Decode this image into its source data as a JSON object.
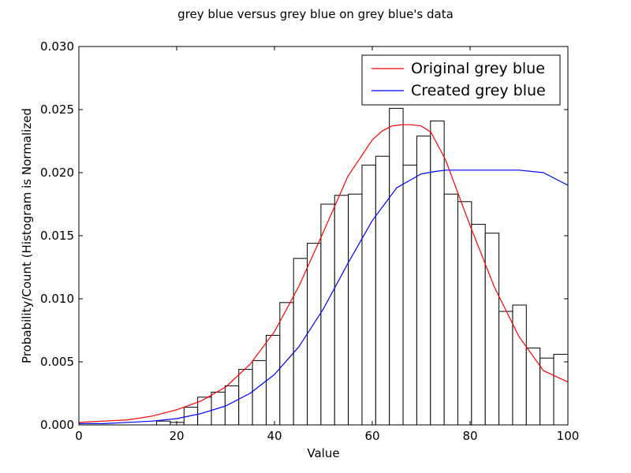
{
  "chart_data": {
    "type": "bar",
    "title": "grey blue versus grey blue on grey blue's data",
    "xlabel": "Value",
    "ylabel": "Probability/Count (Histogram is Normalized",
    "xlim": [
      0,
      100
    ],
    "ylim": [
      0,
      0.03
    ],
    "xticks": [
      0,
      20,
      40,
      60,
      80,
      100
    ],
    "xtick_labels": [
      "0",
      "20",
      "40",
      "60",
      "80",
      "100"
    ],
    "yticks": [
      0,
      0.005,
      0.01,
      0.015,
      0.02,
      0.025,
      0.03
    ],
    "ytick_labels": [
      "0.000",
      "0.005",
      "0.010",
      "0.015",
      "0.020",
      "0.025",
      "0.030"
    ],
    "grid": false,
    "legend_position": "top-right",
    "histogram": {
      "bin_edges": [
        15.9,
        18.7,
        21.5,
        24.3,
        27.1,
        29.9,
        32.7,
        35.5,
        38.3,
        41.1,
        43.9,
        46.7,
        49.5,
        52.3,
        55.1,
        57.9,
        60.7,
        63.5,
        66.3,
        69.1,
        71.9,
        74.7,
        77.5,
        80.3,
        83.1,
        85.9,
        88.7,
        91.5,
        94.3,
        97.1,
        100
      ],
      "values": [
        0.0003,
        0.0002,
        0.0014,
        0.0022,
        0.0026,
        0.0031,
        0.0044,
        0.0051,
        0.0071,
        0.0097,
        0.0132,
        0.0144,
        0.0175,
        0.0182,
        0.0183,
        0.0206,
        0.0213,
        0.0251,
        0.0206,
        0.0229,
        0.0241,
        0.0183,
        0.0177,
        0.0159,
        0.0152,
        0.009,
        0.0095,
        0.0061,
        0.0053,
        0.0056
      ],
      "edge_color": "#000000",
      "fill_color": "#ffffff"
    },
    "series": [
      {
        "name": "Original grey blue",
        "color": "#ff0000",
        "x": [
          0,
          5,
          10,
          15,
          20,
          25,
          30,
          35,
          40,
          45,
          50,
          55,
          60,
          62,
          64,
          66,
          68,
          70,
          72,
          75,
          80,
          85,
          90,
          95,
          100
        ],
        "values": [
          0.0002,
          0.0003,
          0.0004,
          0.0007,
          0.0012,
          0.0019,
          0.003,
          0.0048,
          0.0074,
          0.011,
          0.0153,
          0.0197,
          0.0226,
          0.0233,
          0.0237,
          0.0238,
          0.0238,
          0.0237,
          0.0232,
          0.021,
          0.0158,
          0.0109,
          0.007,
          0.0043,
          0.0034
        ]
      },
      {
        "name": "Created grey blue",
        "color": "#0000ff",
        "x": [
          0,
          5,
          10,
          15,
          20,
          25,
          30,
          35,
          40,
          45,
          50,
          55,
          60,
          65,
          70,
          73,
          75,
          80,
          85,
          90,
          95,
          100
        ],
        "values": [
          0.0001,
          0.0001,
          0.0002,
          0.0003,
          0.0005,
          0.0009,
          0.0015,
          0.0025,
          0.004,
          0.0062,
          0.0092,
          0.0128,
          0.0162,
          0.0188,
          0.0199,
          0.0201,
          0.0202,
          0.0202,
          0.0202,
          0.0202,
          0.02,
          0.019
        ]
      }
    ]
  }
}
